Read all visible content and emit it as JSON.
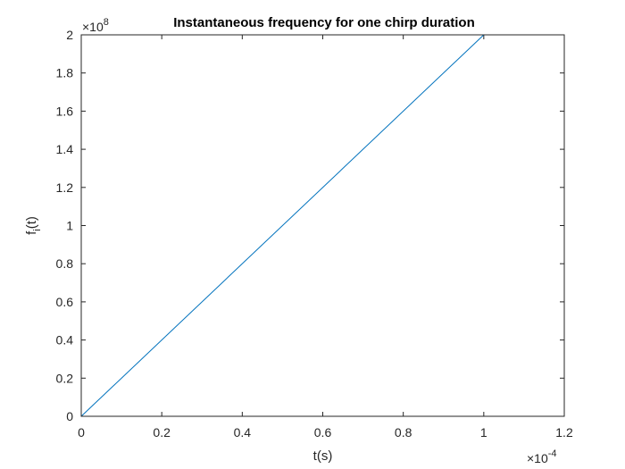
{
  "chart_data": {
    "type": "line",
    "title": "Instantaneous frequency for one chirp duration",
    "xlabel": "t(s)",
    "ylabel_main": "f",
    "ylabel_sub": "i",
    "ylabel_tail": "(t)",
    "x_exponent_base": "×10",
    "x_exponent_power": "-4",
    "y_exponent_base": "×10",
    "y_exponent_power": "8",
    "xlim": [
      0,
      1.2
    ],
    "ylim": [
      0,
      2
    ],
    "x_ticks": [
      0,
      0.2,
      0.4,
      0.6,
      0.8,
      1,
      1.2
    ],
    "x_tick_labels": [
      "0",
      "0.2",
      "0.4",
      "0.6",
      "0.8",
      "1",
      "1.2"
    ],
    "y_ticks": [
      0,
      0.2,
      0.4,
      0.6,
      0.8,
      1,
      1.2,
      1.4,
      1.6,
      1.8,
      2
    ],
    "y_tick_labels": [
      "0",
      "0.2",
      "0.4",
      "0.6",
      "0.8",
      "1",
      "1.2",
      "1.4",
      "1.6",
      "1.8",
      "2"
    ],
    "grid": false,
    "series": [
      {
        "x": [
          0,
          1
        ],
        "y": [
          0,
          2
        ],
        "color": "#0072BD"
      }
    ]
  }
}
